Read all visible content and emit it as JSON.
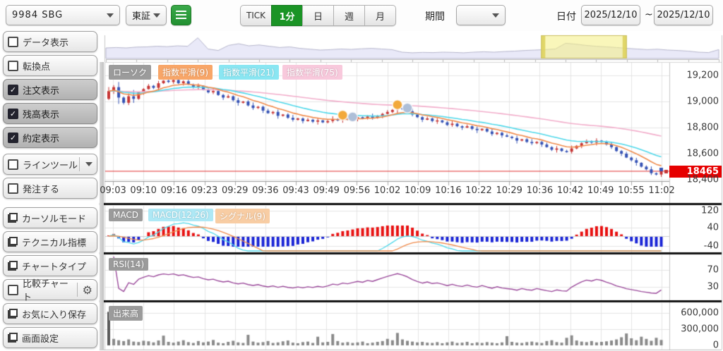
{
  "toolbar": {
    "symbol": "9984 SBG",
    "market": "東証",
    "tabs": [
      "TICK",
      "1分",
      "日",
      "週",
      "月"
    ],
    "active_tab": "1分",
    "period_label": "期間",
    "period_value": "",
    "date_label": "日付",
    "date_from": "2025/12/10",
    "date_separator": "~",
    "date_to": "2025/12/10"
  },
  "sidebar": {
    "items": [
      {
        "label": "データ表示",
        "kind": "checkbox",
        "checked": false
      },
      {
        "label": "転換点",
        "kind": "checkbox",
        "checked": false
      },
      {
        "label": "注文表示",
        "kind": "checkbox",
        "checked": true
      },
      {
        "label": "残高表示",
        "kind": "checkbox",
        "checked": true
      },
      {
        "label": "約定表示",
        "kind": "checkbox",
        "checked": true
      },
      {
        "label": "ラインツール",
        "kind": "checkbox-dropdown",
        "checked": false
      },
      {
        "label": "発注する",
        "kind": "checkbox",
        "checked": false
      },
      {
        "label": "カーソルモード",
        "kind": "window"
      },
      {
        "label": "テクニカル指標",
        "kind": "window"
      },
      {
        "label": "チャートタイプ",
        "kind": "window"
      },
      {
        "label": "比較チャート",
        "kind": "checkbox-gear",
        "checked": false
      },
      {
        "label": "お気に入り保存",
        "kind": "window"
      },
      {
        "label": "画面設定",
        "kind": "window"
      }
    ]
  },
  "chart_data": {
    "type": "candlestick",
    "legend": {
      "candle": "ローソク",
      "ema9": "指数平滑(9)",
      "ema21": "指数平滑(21)",
      "ema75": "指数平滑(75)",
      "macd": "MACD",
      "macd_line": "MACD(12,26)",
      "signal_line": "シグナル(9)",
      "rsi": "RSI(14)",
      "volume": "出来高"
    },
    "indicators": {
      "ema": [
        9,
        21,
        75
      ],
      "macd_fast": 12,
      "macd_slow": 26,
      "macd_signal": 9,
      "rsi": 14
    },
    "time_ticks": [
      "09:03",
      "09:10",
      "09:16",
      "09:23",
      "09:29",
      "09:36",
      "09:43",
      "09:49",
      "09:56",
      "10:02",
      "10:09",
      "10:16",
      "10:22",
      "10:29",
      "10:36",
      "10:42",
      "10:49",
      "10:55",
      "11:02"
    ],
    "price_ticks": [
      {
        "label": "19,200",
        "value": 19200
      },
      {
        "label": "19,000",
        "value": 19000
      },
      {
        "label": "18,800",
        "value": 18800
      },
      {
        "label": "18,600",
        "value": 18600
      },
      {
        "label": "18,400",
        "value": 18400
      }
    ],
    "macd_ticks": [
      "120",
      "40",
      "-40"
    ],
    "rsi_ticks": [
      "70",
      "30"
    ],
    "volume_ticks": [
      "600,000",
      "300,000",
      "0"
    ],
    "current_price": "18465",
    "current_price_value": 18465,
    "open_first": 19020,
    "closes": [
      19080,
      19110,
      19030,
      18990,
      19040,
      19020,
      19070,
      19095,
      19120,
      19105,
      19140,
      19160,
      19150,
      19165,
      19140,
      19155,
      19130,
      19110,
      19120,
      19090,
      19070,
      19080,
      19050,
      19030,
      19040,
      19010,
      18990,
      19000,
      18970,
      18950,
      18960,
      18930,
      18910,
      18920,
      18890,
      18900,
      18875,
      18860,
      18870,
      18850,
      18860,
      18845,
      18855,
      18840,
      18850,
      18865,
      18855,
      18870,
      18860,
      18870,
      18880,
      18870,
      18885,
      18875,
      18890,
      18905,
      18920,
      18935,
      18950,
      18940,
      18925,
      18900,
      18880,
      18860,
      18870,
      18850,
      18855,
      18840,
      18820,
      18830,
      18810,
      18800,
      18810,
      18790,
      18780,
      18790,
      18770,
      18750,
      18760,
      18740,
      18730,
      18720,
      18700,
      18710,
      18690,
      18680,
      18690,
      18670,
      18650,
      18630,
      18640,
      18620,
      18615,
      18640,
      18660,
      18680,
      18695,
      18685,
      18700,
      18690,
      18670,
      18650,
      18620,
      18600,
      18570,
      18550,
      18530,
      18500,
      18480,
      18450,
      18440,
      18465
    ],
    "wick_pattern": [
      14,
      7,
      18,
      4,
      10,
      22,
      6,
      8
    ],
    "volume_unit": 1000,
    "volumes_k": [
      620,
      120,
      95,
      80,
      110,
      70,
      62,
      85,
      75,
      55,
      90,
      180,
      65,
      50,
      70,
      95,
      60,
      45,
      80,
      55,
      70,
      100,
      50,
      40,
      65,
      85,
      55,
      45,
      195,
      70,
      50,
      60,
      80,
      45,
      55,
      75,
      90,
      50,
      40,
      60,
      70,
      45,
      160,
      55,
      65,
      210,
      80,
      50,
      60,
      45,
      55,
      70,
      40,
      50,
      65,
      80,
      120,
      95,
      230,
      110,
      85,
      70,
      55,
      65,
      50,
      45,
      60,
      40,
      55,
      70,
      45,
      50,
      65,
      40,
      55,
      45,
      60,
      50,
      40,
      55,
      170,
      65,
      50,
      45,
      60,
      70,
      55,
      45,
      80,
      95,
      60,
      50,
      140,
      185,
      90,
      70,
      60,
      80,
      55,
      65,
      75,
      90,
      110,
      150,
      220,
      130,
      95,
      160,
      120,
      85,
      140,
      100
    ],
    "markers": [
      {
        "index": 47,
        "price": 18895,
        "color": "#f2a93b",
        "r": 7
      },
      {
        "index": 49,
        "price": 18882,
        "color": "#aebfd8",
        "r": 7
      },
      {
        "index": 58,
        "price": 18975,
        "color": "#f2a93b",
        "r": 7
      },
      {
        "index": 60,
        "price": 18950,
        "color": "#aebfd8",
        "r": 7
      }
    ],
    "navigator": {
      "heights": [
        0.5,
        0.52,
        0.5,
        0.54,
        0.55,
        0.58,
        0.56,
        0.6,
        0.58,
        0.98,
        0.45,
        0.38,
        0.62,
        0.7,
        0.6,
        0.64,
        0.58,
        0.52,
        0.55,
        0.48,
        0.44,
        0.4,
        0.42,
        0.45,
        0.43,
        0.46,
        0.48,
        0.45,
        0.42,
        0.3,
        0.27,
        0.29,
        0.28,
        0.3,
        0.29,
        0.27,
        0.3,
        0.32,
        0.3,
        0.33,
        0.35,
        0.38,
        0.4,
        0.42,
        0.45,
        0.72,
        0.68,
        0.62,
        0.58,
        0.55,
        0.52,
        0.48,
        0.45,
        0.42,
        0.44,
        0.4,
        0.38,
        0.35,
        0.3,
        0.28,
        0.42
      ],
      "selection": [
        0.71,
        0.85
      ]
    },
    "colors": {
      "up": "#c63535",
      "down": "#3653b5",
      "ema9": "#f08b4b",
      "ema21": "#4fd8ea",
      "ema75": "#f2aecb",
      "macd_line": "#4fd8ea",
      "signal_line": "#f08b4b",
      "hist_pos": "#e81212",
      "hist_neg": "#1a25d6",
      "rsi": "#9b4a9b",
      "volume": "#8a8a8a",
      "volume_first": "#5a5a5a",
      "nav_fill": "#e9e9f8",
      "nav_line": "#b6b6cc",
      "selection": "#f4ee82",
      "price_tag": "#e60000",
      "price_line": "#e03030"
    }
  }
}
